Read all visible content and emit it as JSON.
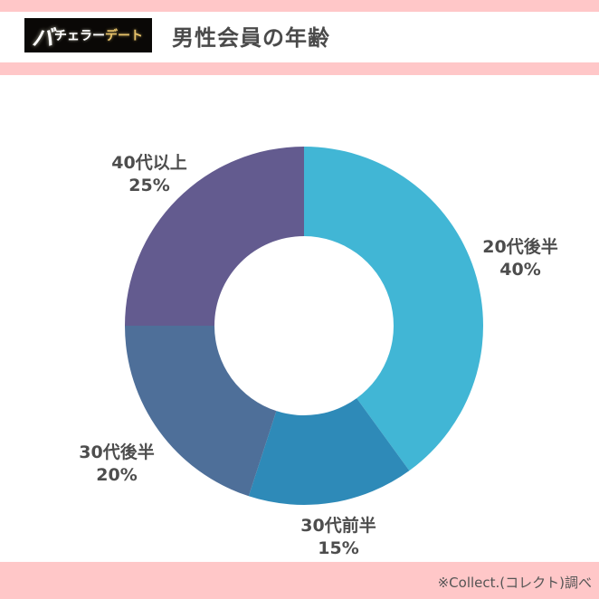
{
  "header": {
    "logo": {
      "big": "バ",
      "white": "チェラー",
      "gold": "デート"
    },
    "title": "男性会員の年齢"
  },
  "colors": {
    "band": "#ffc7c8",
    "slice_20s_late": "#41b6d5",
    "slice_30s_early": "#2e8ab8",
    "slice_30s_late": "#4e6f99",
    "slice_40s_plus": "#635b8f"
  },
  "chart_data": {
    "type": "pie",
    "subtype": "donut",
    "title": "男性会員の年齢",
    "categories": [
      "20代後半",
      "30代前半",
      "30代後半",
      "40代以上"
    ],
    "values": [
      40,
      15,
      20,
      25
    ],
    "unit": "%",
    "colors": [
      "#41b6d5",
      "#2e8ab8",
      "#4e6f99",
      "#635b8f"
    ],
    "start_angle": "12 o'clock, clockwise",
    "legend": "none (direct labels)"
  },
  "labels": [
    {
      "name": "20代後半",
      "pct": "40%"
    },
    {
      "name": "30代前半",
      "pct": "15%"
    },
    {
      "name": "30代後半",
      "pct": "20%"
    },
    {
      "name": "40代以上",
      "pct": "25%"
    }
  ],
  "footer": {
    "source": "※Collect.(コレクト)調べ"
  }
}
